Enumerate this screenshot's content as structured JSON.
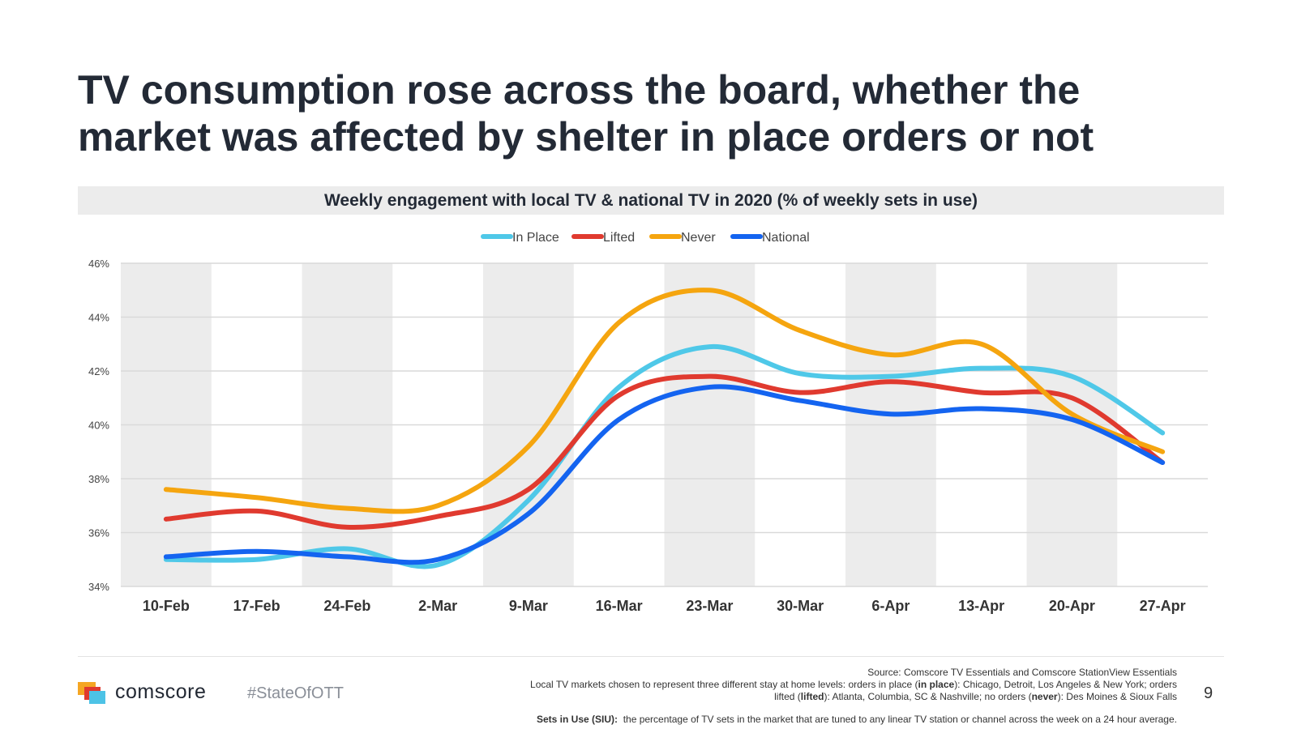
{
  "slide": {
    "title_line1": "TV consumption rose across the board, whether the",
    "title_line2": "market was affected by shelter in place orders or not",
    "page_number": "9"
  },
  "footer": {
    "brand": "comscore",
    "hashtag": "#StateOfOTT",
    "source": "Source: Comscore TV Essentials and Comscore StationView Essentials",
    "note_line1_a": "Local TV markets chosen to represent three different stay at home levels: orders in place (",
    "note_line1_b": "in place",
    "note_line1_c": "): Chicago, Detroit, Los Angeles & New York; orders",
    "note_line2_a": "lifted (",
    "note_line2_b": "lifted",
    "note_line2_c": "): Atlanta, Columbia, SC & Nashville; no orders (",
    "note_line2_d": "never",
    "note_line2_e": "): Des Moines & Sioux Falls",
    "siu_label": "Sets in Use (SIU):",
    "siu_text": "the percentage of TV sets in the market that are tuned to any linear TV station or channel across the week on a 24 hour average."
  },
  "colors": {
    "band": "#ececec",
    "grid": "#d9d9d9",
    "logo_orange": "#f5a623",
    "logo_red": "#e03a2f",
    "logo_blue": "#4dc3e6"
  },
  "chart_data": {
    "type": "line",
    "title": "Weekly engagement with local TV & national TV in 2020 (% of weekly sets in use)",
    "categories": [
      "10-Feb",
      "17-Feb",
      "24-Feb",
      "2-Mar",
      "9-Mar",
      "16-Mar",
      "23-Mar",
      "30-Mar",
      "6-Apr",
      "13-Apr",
      "20-Apr",
      "27-Apr"
    ],
    "ylim": [
      34,
      46
    ],
    "yticks": [
      34,
      36,
      38,
      40,
      42,
      44,
      46
    ],
    "ytick_labels": [
      "34%",
      "36%",
      "38%",
      "40%",
      "42%",
      "44%",
      "46%"
    ],
    "xlabel": "",
    "ylabel": "",
    "legend_position": "top-center",
    "series": [
      {
        "name": "In Place",
        "color": "#4fc8e8",
        "values": [
          35.0,
          35.0,
          35.4,
          34.8,
          37.2,
          41.4,
          42.9,
          41.9,
          41.8,
          42.1,
          41.8,
          39.7
        ]
      },
      {
        "name": "Lifted",
        "color": "#e03a2f",
        "values": [
          36.5,
          36.8,
          36.2,
          36.6,
          37.6,
          41.1,
          41.8,
          41.2,
          41.6,
          41.2,
          41.0,
          38.6
        ]
      },
      {
        "name": "Never",
        "color": "#f5a50f",
        "values": [
          37.6,
          37.3,
          36.9,
          37.0,
          39.2,
          43.8,
          45.0,
          43.5,
          42.6,
          43.0,
          40.4,
          39.0
        ]
      },
      {
        "name": "National",
        "color": "#1464f0",
        "values": [
          35.1,
          35.3,
          35.1,
          35.0,
          36.7,
          40.2,
          41.4,
          40.9,
          40.4,
          40.6,
          40.2,
          38.6
        ]
      }
    ]
  }
}
